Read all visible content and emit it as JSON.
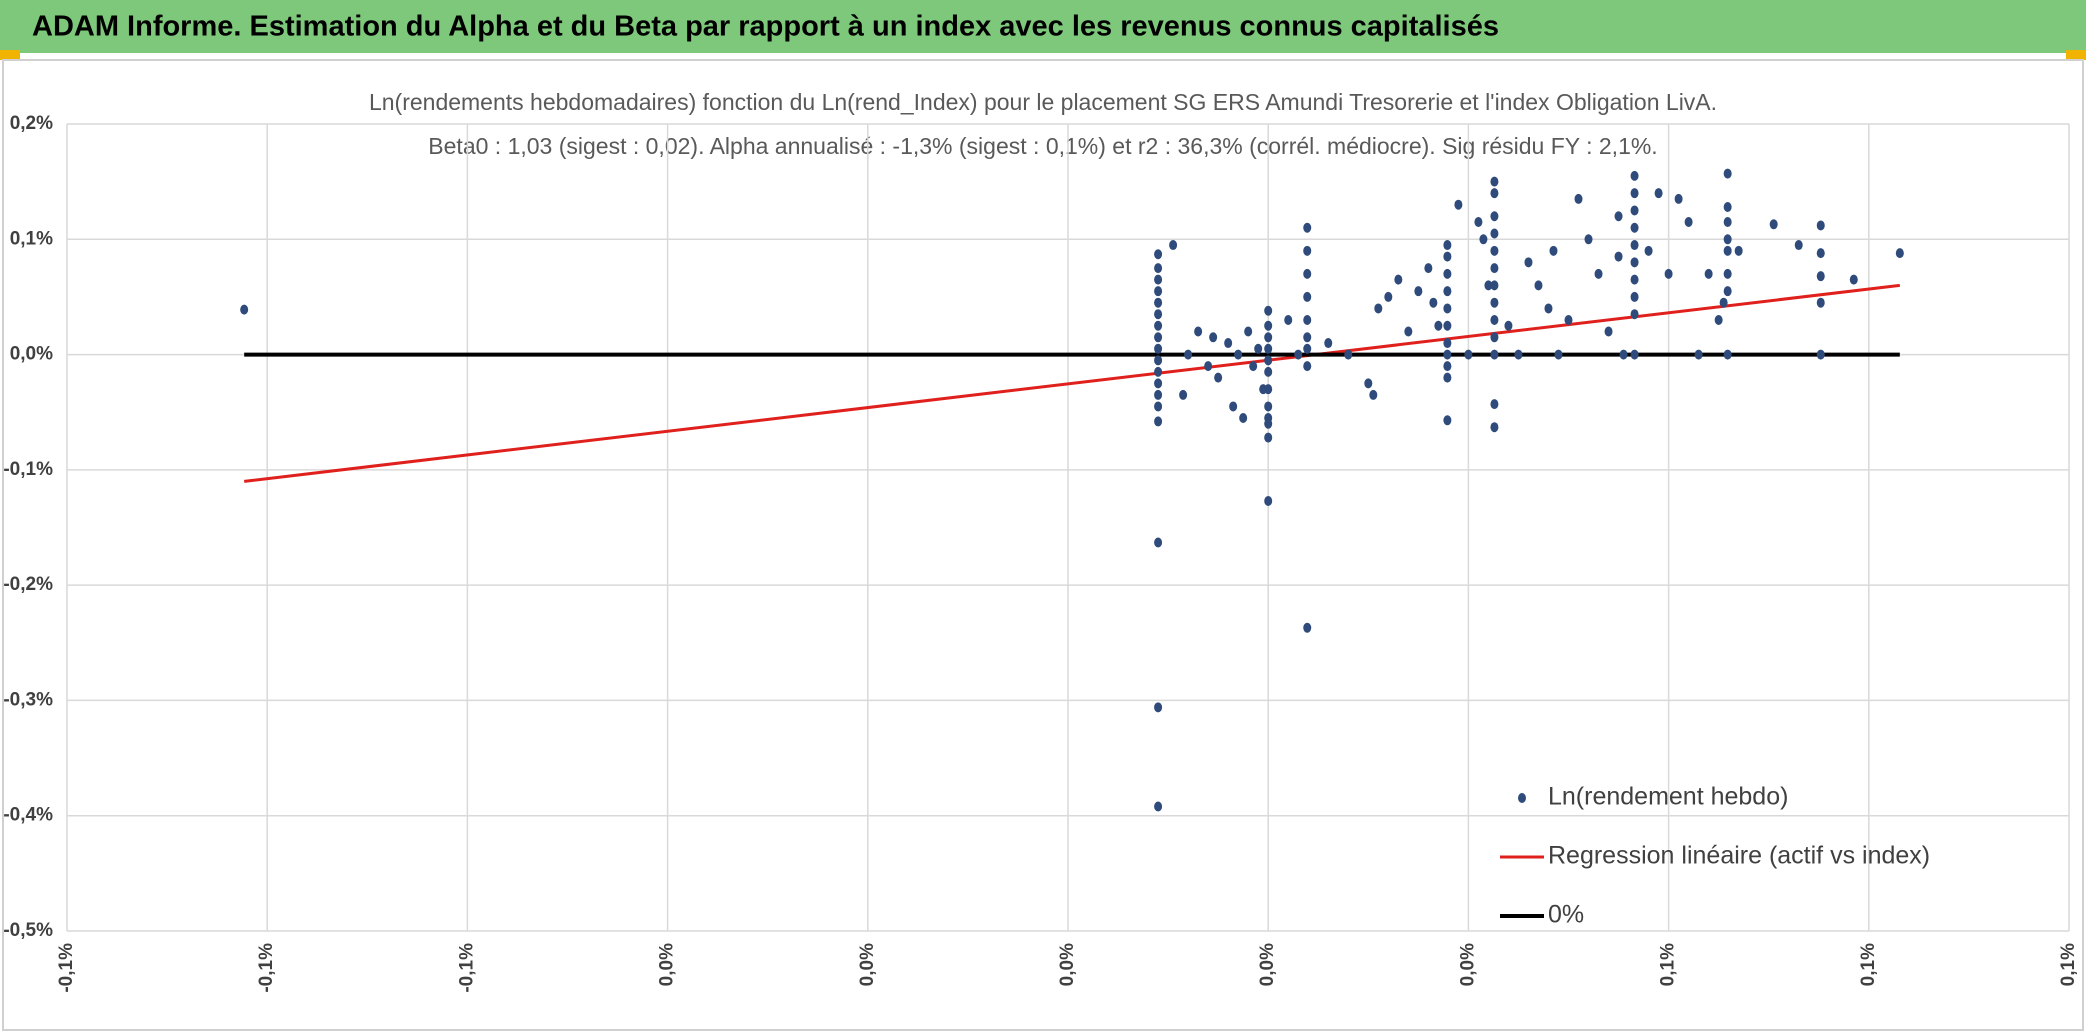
{
  "header": {
    "title": "ADAM Informe. Estimation du Alpha et du Beta par rapport à un index avec les revenus connus capitalisés"
  },
  "chart_data": {
    "type": "scatter",
    "title": "Ln(rendements hebdomadaires) fonction du Ln(rend_Index) pour le placement SG ERS Amundi Tresorerie  et l'index Obligation LivA.",
    "subtitle": "Beta0 : 1,03 (sigest : 0,02). Alpha annualisé : -1,3% (sigest : 0,1%) et r2 : 36,3% (corrél. médiocre). Sig résidu FY : 2,1%.",
    "xlim": [
      -0.1,
      0.1
    ],
    "ylim": [
      -0.5,
      0.2
    ],
    "xticks": [
      {
        "value": -0.1,
        "label": "-0,1%"
      },
      {
        "value": -0.08,
        "label": "-0,1%"
      },
      {
        "value": -0.06,
        "label": "-0,1%"
      },
      {
        "value": -0.04,
        "label": "0,0%"
      },
      {
        "value": -0.02,
        "label": "0,0%"
      },
      {
        "value": 0,
        "label": "0,0%"
      },
      {
        "value": 0.02,
        "label": "0,0%"
      },
      {
        "value": 0.04,
        "label": "0,0%"
      },
      {
        "value": 0.06,
        "label": "0,1%"
      },
      {
        "value": 0.08,
        "label": "0,1%"
      },
      {
        "value": 0.1,
        "label": "0,1%"
      }
    ],
    "yticks": [
      {
        "value": 0.2,
        "label": "0,2%"
      },
      {
        "value": 0.1,
        "label": "0,1%"
      },
      {
        "value": 0,
        "label": "0,0%"
      },
      {
        "value": -0.1,
        "label": "-0,1%"
      },
      {
        "value": -0.2,
        "label": "-0,2%"
      },
      {
        "value": -0.3,
        "label": "-0,3%"
      },
      {
        "value": -0.4,
        "label": "-0,4%"
      },
      {
        "value": -0.5,
        "label": "-0,5%"
      }
    ],
    "grid": true,
    "legend": "bottom-right",
    "series": [
      {
        "name": "Ln(rendement hebdo)",
        "color": "#2f4b7c",
        "x": [
          -0.0823,
          0.009,
          0.009,
          0.009,
          0.009,
          0.009,
          0.009,
          0.009,
          0.009,
          0.009,
          0.009,
          0.009,
          0.009,
          0.009,
          0.009,
          0.009,
          0.009,
          0.009,
          0.009,
          0.0105,
          0.0115,
          0.012,
          0.013,
          0.014,
          0.0145,
          0.015,
          0.016,
          0.0165,
          0.017,
          0.0175,
          0.018,
          0.0185,
          0.019,
          0.0195,
          0.02,
          0.02,
          0.02,
          0.02,
          0.02,
          0.02,
          0.02,
          0.02,
          0.02,
          0.02,
          0.02,
          0.02,
          0.022,
          0.023,
          0.0239,
          0.0239,
          0.0239,
          0.0239,
          0.0239,
          0.0239,
          0.0239,
          0.0239,
          0.0239,
          0.026,
          0.028,
          0.03,
          0.0305,
          0.031,
          0.032,
          0.033,
          0.034,
          0.035,
          0.036,
          0.0365,
          0.037,
          0.0379,
          0.0379,
          0.0379,
          0.0379,
          0.0379,
          0.0379,
          0.0379,
          0.0379,
          0.0379,
          0.0379,
          0.0379,
          0.039,
          0.04,
          0.041,
          0.0415,
          0.042,
          0.0426,
          0.0426,
          0.0426,
          0.0426,
          0.0426,
          0.0426,
          0.0426,
          0.0426,
          0.0426,
          0.0426,
          0.0426,
          0.0426,
          0.0426,
          0.044,
          0.045,
          0.046,
          0.047,
          0.048,
          0.0485,
          0.049,
          0.05,
          0.051,
          0.052,
          0.053,
          0.054,
          0.055,
          0.055,
          0.0555,
          0.0566,
          0.0566,
          0.0566,
          0.0566,
          0.0566,
          0.0566,
          0.0566,
          0.0566,
          0.0566,
          0.0566,
          0.058,
          0.059,
          0.06,
          0.061,
          0.062,
          0.063,
          0.064,
          0.065,
          0.0655,
          0.0659,
          0.0659,
          0.0659,
          0.0659,
          0.0659,
          0.0659,
          0.0659,
          0.0659,
          0.067,
          0.0705,
          0.073,
          0.0752,
          0.0752,
          0.0752,
          0.0752,
          0.0752,
          0.0785,
          0.0831
        ],
        "values": [
          0.039,
          0.087,
          0.075,
          0.065,
          0.055,
          0.045,
          0.035,
          0.025,
          0.015,
          0.005,
          -0.005,
          -0.015,
          -0.025,
          -0.035,
          -0.045,
          -0.058,
          -0.163,
          -0.306,
          -0.392,
          0.095,
          -0.035,
          0,
          0.02,
          -0.01,
          0.015,
          -0.02,
          0.01,
          -0.045,
          0,
          -0.055,
          0.02,
          -0.01,
          0.005,
          -0.03,
          0.038,
          0.025,
          0.015,
          0.005,
          -0.005,
          -0.015,
          -0.03,
          -0.045,
          -0.055,
          -0.06,
          -0.072,
          -0.127,
          0.03,
          0,
          0.11,
          0.09,
          0.07,
          0.05,
          0.03,
          0.015,
          0.005,
          -0.01,
          -0.237,
          0.01,
          0,
          -0.025,
          -0.035,
          0.04,
          0.05,
          0.065,
          0.02,
          0.055,
          0.075,
          0.045,
          0.025,
          0.095,
          0.085,
          0.07,
          0.055,
          0.04,
          0.025,
          0.01,
          0,
          -0.01,
          -0.02,
          -0.057,
          0.13,
          0,
          0.115,
          0.1,
          0.06,
          0.15,
          0.14,
          0.12,
          0.105,
          0.09,
          0.075,
          0.06,
          0.045,
          0.03,
          0.015,
          0,
          -0.043,
          -0.063,
          0.025,
          0,
          0.08,
          0.06,
          0.04,
          0.09,
          0,
          0.03,
          0.135,
          0.1,
          0.07,
          0.02,
          0.12,
          0.085,
          0,
          0.155,
          0.14,
          0.125,
          0.11,
          0.095,
          0.08,
          0.065,
          0.05,
          0.035,
          0,
          0.09,
          0.14,
          0.07,
          0.135,
          0.115,
          0,
          0.07,
          0.03,
          0.045,
          0.157,
          0.128,
          0.115,
          0.1,
          0.09,
          0.07,
          0.055,
          0,
          0.09,
          0.113,
          0.095,
          0.112,
          0.088,
          0.068,
          0.045,
          0,
          0.065,
          0.088
        ]
      },
      {
        "name": "Regression linéaire (actif vs index)",
        "color": "#e0201c",
        "x": [
          -0.0823,
          0.0831
        ],
        "values": [
          -0.11,
          0.06
        ]
      },
      {
        "name": "0%",
        "color": "#000000",
        "x": [
          -0.0823,
          0.0831
        ],
        "values": [
          0,
          0
        ]
      }
    ]
  }
}
